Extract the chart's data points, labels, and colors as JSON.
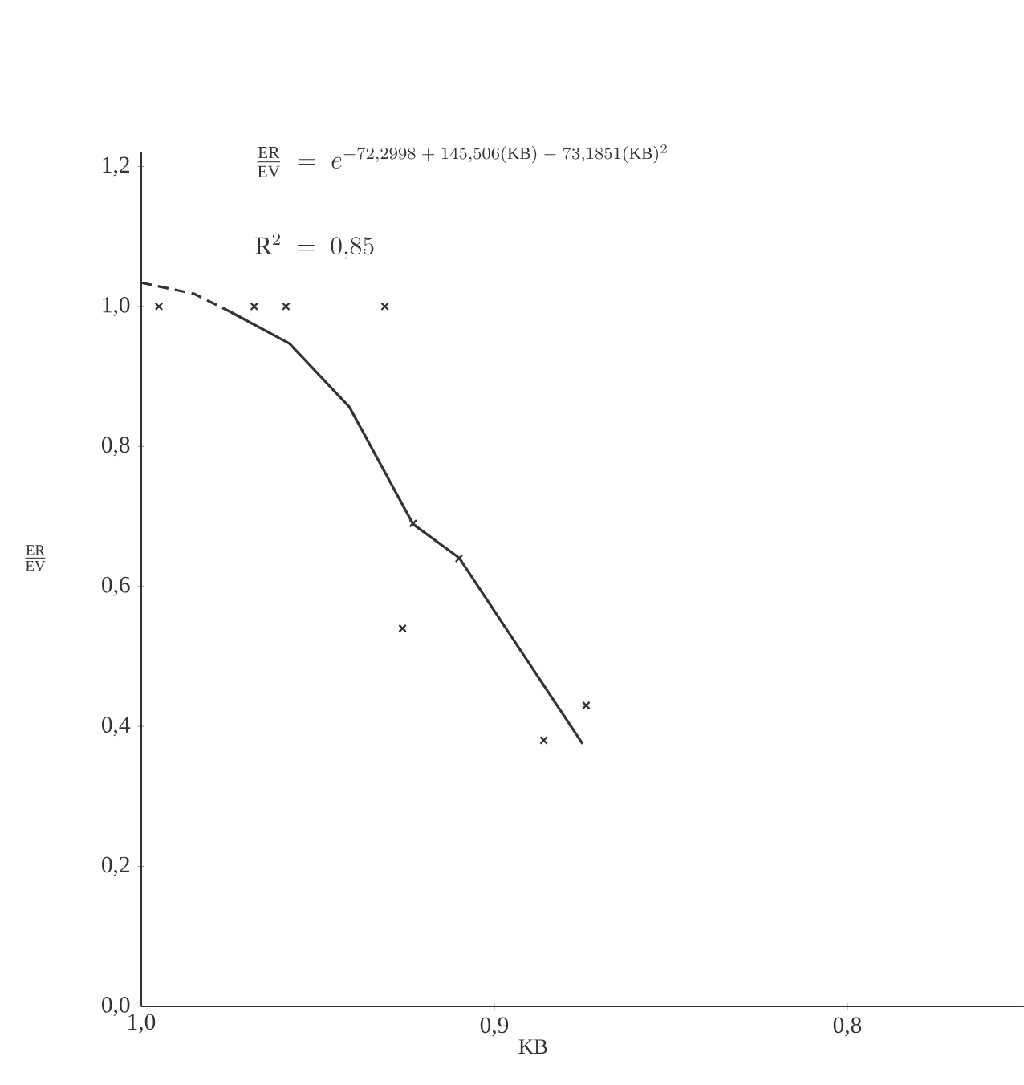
{
  "chart_data": {
    "type": "scatter",
    "xlabel": "KB",
    "ylabel": "\\frac{\\mathrm{ER}}{\\mathrm{EV}}",
    "xlim": [
      1.0,
      0.75
    ],
    "ylim": [
      0,
      1.22
    ],
    "xticks": [
      {
        "value": 1.0,
        "label": "1,0"
      },
      {
        "value": 0.9,
        "label": "0,9"
      },
      {
        "value": 0.8,
        "label": "0,8"
      }
    ],
    "yticks": [
      {
        "value": 0,
        "label": "0,0"
      },
      {
        "value": 0.2,
        "label": "0,2"
      },
      {
        "value": 0.4,
        "label": "0,4"
      },
      {
        "value": 0.6,
        "label": "0,6"
      },
      {
        "value": 0.8,
        "label": "0,8"
      },
      {
        "value": 1.0,
        "label": "1,0"
      },
      {
        "value": 1.2,
        "label": "1,2"
      }
    ],
    "annotations": [
      "\\frac{\\mathrm{ER}}{\\mathrm{EV}}\\;=\\;e^{-72{,}2998\\;+\\;145{,}506(\\mathrm{KB})\\;-\\;73{,}1851(\\mathrm{KB})^{2}}",
      "\\mathrm{R}^{2}\\;=\\;0{,}85"
    ],
    "marker": "cross",
    "grid": false,
    "series": [
      {
        "color": "#333333",
        "x": [
          0.995,
          0.968,
          0.959,
          0.931,
          0.923,
          0.91,
          0.926,
          0.886,
          0.874
        ],
        "values": [
          1.0,
          1.0,
          1.0,
          1.0,
          0.69,
          0.64,
          0.54,
          0.38,
          0.43
        ]
      },
      {
        "type": "line",
        "color": "#333333",
        "line_style": "dashed",
        "marker": "none",
        "x": [
          1.0,
          0.985,
          0.975
        ],
        "values": [
          1.034,
          1.018,
          0.993
        ]
      },
      {
        "type": "line",
        "color": "#333333",
        "line_style": "solid",
        "marker": "none",
        "x": [
          0.975,
          0.958,
          0.941,
          0.923,
          0.91,
          0.875
        ],
        "values": [
          0.993,
          0.947,
          0.856,
          0.689,
          0.641,
          0.375
        ]
      }
    ]
  }
}
